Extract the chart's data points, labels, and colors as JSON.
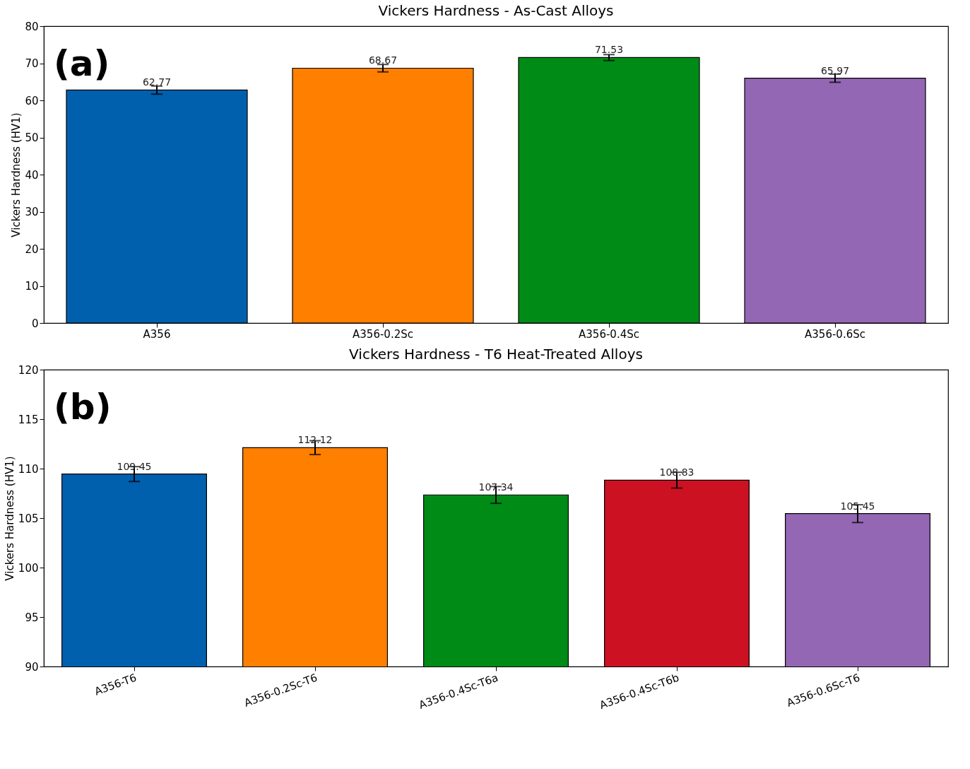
{
  "chart_data": [
    {
      "type": "bar",
      "title": "Vickers Hardness - As-Cast Alloys",
      "ylabel": "Vickers Hardness (HV1)",
      "categories": [
        "A356",
        "A356-0.2Sc",
        "A356-0.4Sc",
        "A356-0.6Sc"
      ],
      "values": [
        62.77,
        68.67,
        71.53,
        65.97
      ],
      "errors": [
        1.1,
        1.0,
        0.8,
        1.1
      ],
      "colors": [
        "#0060ae",
        "#ff7f00",
        "#008b17",
        "#9467b4"
      ],
      "ylim": [
        0,
        80
      ],
      "yticks": [
        0,
        10,
        20,
        30,
        40,
        50,
        60,
        70,
        80
      ],
      "data_labels": true,
      "grid": false,
      "annotations": [
        "(a)"
      ]
    },
    {
      "type": "bar",
      "title": "Vickers Hardness - T6 Heat-Treated Alloys",
      "ylabel": "Vickers Hardness (HV1)",
      "categories": [
        "A356-T6",
        "A356-0.2Sc-T6",
        "A356-0.4Sc-T6a",
        "A356-0.4Sc-T6b",
        "A356-0.6Sc-T6"
      ],
      "values": [
        109.45,
        112.12,
        107.34,
        108.83,
        105.45
      ],
      "errors": [
        0.75,
        0.7,
        0.85,
        0.8,
        0.9
      ],
      "colors": [
        "#0060ae",
        "#ff7f00",
        "#008b17",
        "#cc1122",
        "#9467b4"
      ],
      "ylim": [
        90,
        120
      ],
      "yticks": [
        90,
        95,
        100,
        105,
        110,
        115,
        120
      ],
      "data_labels": true,
      "grid": false,
      "annotations": [
        "(b)"
      ]
    }
  ]
}
